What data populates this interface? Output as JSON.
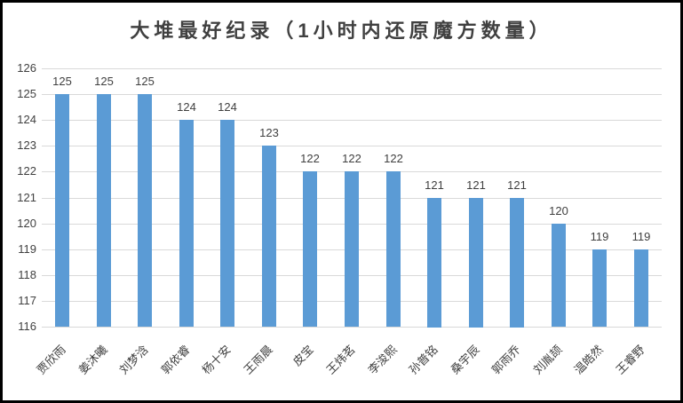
{
  "window": {
    "border_color": "#000000",
    "background_color": "#ffffff"
  },
  "chart_data": {
    "type": "bar",
    "title": "大堆最好纪录（1小时内还原魔方数量）",
    "categories": [
      "贾欣雨",
      "姜沐曦",
      "刘梦浛",
      "郭依睿",
      "杨十安",
      "王雨晨",
      "皮宝",
      "王炜茗",
      "李浚熙",
      "孙普铭",
      "桑宇辰",
      "郭雨乔",
      "刘胤颉",
      "温皓然",
      "王睿野"
    ],
    "values": [
      125,
      125,
      125,
      124,
      124,
      123,
      122,
      122,
      122,
      121,
      121,
      121,
      120,
      119,
      119
    ],
    "data_labels": [
      "125",
      "125",
      "125",
      "124",
      "124",
      "123",
      "122",
      "122",
      "122",
      "121",
      "121",
      "121",
      "120",
      "119",
      "119"
    ],
    "xlabel": "",
    "ylabel": "",
    "ylim": [
      116,
      126
    ],
    "yticks": [
      "126",
      "125",
      "124",
      "123",
      "122",
      "121",
      "120",
      "119",
      "118",
      "117",
      "116"
    ],
    "grid": true,
    "legend": "none",
    "bar_color": "#5B9BD5",
    "gridline_color": "#d9d9d9",
    "text_color": "#404040",
    "title_color": "#404040"
  }
}
